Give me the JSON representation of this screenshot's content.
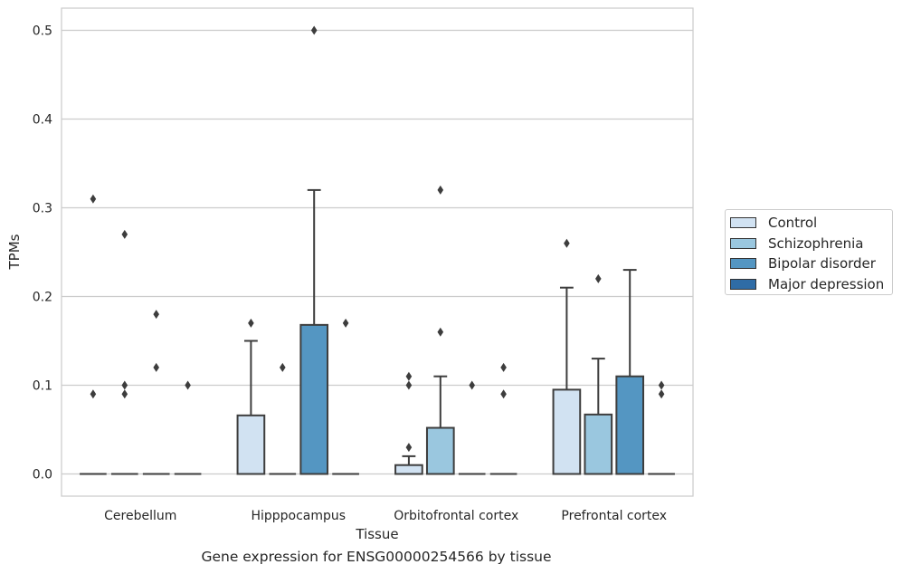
{
  "chart_data": {
    "type": "box",
    "xlabel": "Tissue",
    "ylabel": "TPMs",
    "ylim": [
      -0.025,
      0.525
    ],
    "yticks": [
      0.0,
      0.1,
      0.2,
      0.3,
      0.4,
      0.5
    ],
    "ytick_labels": [
      "0.0",
      "0.1",
      "0.2",
      "0.3",
      "0.4",
      "0.5"
    ],
    "grid": "horizontal",
    "legend_position": "right",
    "categories": [
      "Cerebellum",
      "Hipppocampus",
      "Orbitofrontal cortex",
      "Prefrontal cortex"
    ],
    "series": [
      {
        "name": "Control",
        "color": "#d1e2f2",
        "boxes": [
          {
            "q1": 0,
            "median": 0,
            "q3": 0,
            "whisker_low": 0,
            "whisker_high": 0,
            "outliers": [
              0.31,
              0.09
            ]
          },
          {
            "q1": 0,
            "median": 0,
            "q3": 0.066,
            "whisker_low": 0,
            "whisker_high": 0.15,
            "outliers": [
              0.17
            ]
          },
          {
            "q1": 0,
            "median": 0,
            "q3": 0.01,
            "whisker_low": 0,
            "whisker_high": 0.02,
            "outliers": [
              0.11,
              0.1,
              0.03
            ]
          },
          {
            "q1": 0,
            "median": 0,
            "q3": 0.095,
            "whisker_low": 0,
            "whisker_high": 0.21,
            "outliers": [
              0.26
            ]
          }
        ]
      },
      {
        "name": "Schizophrenia",
        "color": "#9ac7df",
        "boxes": [
          {
            "q1": 0,
            "median": 0,
            "q3": 0,
            "whisker_low": 0,
            "whisker_high": 0,
            "outliers": [
              0.27,
              0.1,
              0.09
            ]
          },
          {
            "q1": 0,
            "median": 0,
            "q3": 0,
            "whisker_low": 0,
            "whisker_high": 0,
            "outliers": [
              0.12
            ]
          },
          {
            "q1": 0,
            "median": 0,
            "q3": 0.052,
            "whisker_low": 0,
            "whisker_high": 0.11,
            "outliers": [
              0.32,
              0.16
            ]
          },
          {
            "q1": 0,
            "median": 0,
            "q3": 0.067,
            "whisker_low": 0,
            "whisker_high": 0.13,
            "outliers": [
              0.22
            ]
          }
        ]
      },
      {
        "name": "Bipolar disorder",
        "color": "#5496c2",
        "boxes": [
          {
            "q1": 0,
            "median": 0,
            "q3": 0,
            "whisker_low": 0,
            "whisker_high": 0,
            "outliers": [
              0.18,
              0.12
            ]
          },
          {
            "q1": 0,
            "median": 0,
            "q3": 0.168,
            "whisker_low": 0,
            "whisker_high": 0.32,
            "outliers": [
              0.5
            ]
          },
          {
            "q1": 0,
            "median": 0,
            "q3": 0,
            "whisker_low": 0,
            "whisker_high": 0,
            "outliers": [
              0.1
            ]
          },
          {
            "q1": 0,
            "median": 0,
            "q3": 0.11,
            "whisker_low": 0,
            "whisker_high": 0.23,
            "outliers": []
          }
        ]
      },
      {
        "name": "Major depression",
        "color": "#2f6ca6",
        "boxes": [
          {
            "q1": 0,
            "median": 0,
            "q3": 0,
            "whisker_low": 0,
            "whisker_high": 0,
            "outliers": [
              0.1
            ]
          },
          {
            "q1": 0,
            "median": 0,
            "q3": 0,
            "whisker_low": 0,
            "whisker_high": 0,
            "outliers": [
              0.17
            ]
          },
          {
            "q1": 0,
            "median": 0,
            "q3": 0,
            "whisker_low": 0,
            "whisker_high": 0,
            "outliers": [
              0.12,
              0.09
            ]
          },
          {
            "q1": 0,
            "median": 0,
            "q3": 0,
            "whisker_low": 0,
            "whisker_high": 0,
            "outliers": [
              0.1,
              0.09
            ]
          }
        ]
      }
    ],
    "caption": "Gene expression for ENSG00000254566 by tissue"
  }
}
